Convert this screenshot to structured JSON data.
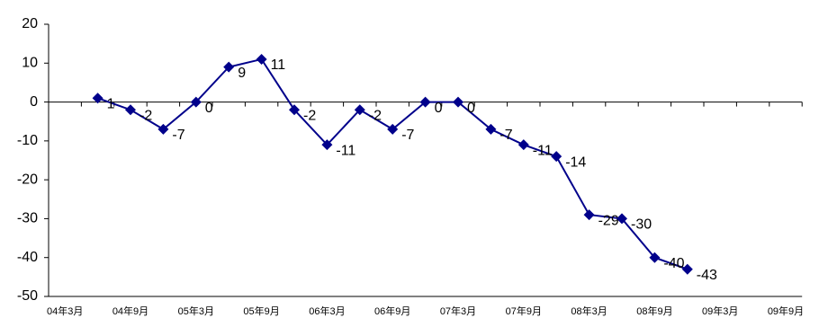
{
  "chart_data": {
    "type": "line",
    "categories": [
      "04年3月",
      null,
      "04年9月",
      null,
      "05年3月",
      null,
      "05年9月",
      null,
      "06年3月",
      null,
      "06年9月",
      null,
      "07年3月",
      null,
      "07年9月",
      null,
      "08年3月",
      null,
      "08年9月",
      null,
      "09年3月",
      null,
      "09年9月"
    ],
    "series": [
      {
        "color": "#00008b",
        "values": [
          null,
          1,
          -2,
          -7,
          0,
          9,
          11,
          -2,
          -11,
          -2,
          -7,
          0,
          0,
          -7,
          -11,
          -14,
          -29,
          -30,
          -40,
          -43,
          null,
          null,
          null
        ]
      }
    ],
    "ylim": [
      -50,
      20
    ],
    "yticks": [
      -50,
      -40,
      -30,
      -20,
      -10,
      0,
      10,
      20
    ]
  }
}
